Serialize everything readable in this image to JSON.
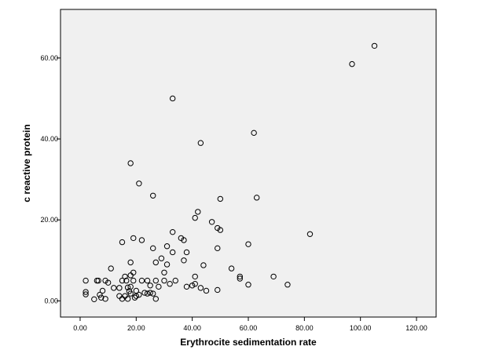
{
  "chart_data": {
    "type": "scatter",
    "title": "",
    "xlabel": "Erythrocite sedimentation rate",
    "ylabel": "c reactive protein",
    "xlim": [
      -7,
      127
    ],
    "ylim": [
      -4,
      72
    ],
    "x_ticks": [
      0,
      20,
      40,
      60,
      80,
      100,
      120
    ],
    "x_tick_labels": [
      "0.00",
      "20.00",
      "40.00",
      "60.00",
      "80.00",
      "100.00",
      "120.00"
    ],
    "y_ticks": [
      0,
      20,
      40,
      60
    ],
    "y_tick_labels": [
      "0.00",
      "20.00",
      "40.00",
      "60.00"
    ],
    "grid": false,
    "legend": "none",
    "colors": {
      "plot_background": "#f0f0f0",
      "marker_stroke": "#000000",
      "axis": "#000000"
    },
    "series": [
      {
        "marker": "open-circle",
        "points": [
          [
            2,
            5
          ],
          [
            2,
            2.2
          ],
          [
            2,
            1.6
          ],
          [
            5,
            0.4
          ],
          [
            6,
            5
          ],
          [
            6.5,
            5
          ],
          [
            7,
            1.5
          ],
          [
            7.5,
            0.8
          ],
          [
            8,
            2.5
          ],
          [
            9,
            5
          ],
          [
            9,
            0.5
          ],
          [
            10,
            4.5
          ],
          [
            11,
            8
          ],
          [
            12,
            3.2
          ],
          [
            14,
            3.2
          ],
          [
            14,
            1.2
          ],
          [
            15,
            14.5
          ],
          [
            15,
            5
          ],
          [
            15,
            0.5
          ],
          [
            16,
            6
          ],
          [
            16,
            1.2
          ],
          [
            16.5,
            5
          ],
          [
            17,
            3.3
          ],
          [
            17,
            0.5
          ],
          [
            17.5,
            2.4
          ],
          [
            18,
            34
          ],
          [
            18,
            9.5
          ],
          [
            18,
            6.3
          ],
          [
            18,
            3.5
          ],
          [
            18,
            1.8
          ],
          [
            19,
            15.5
          ],
          [
            19,
            7
          ],
          [
            19,
            5
          ],
          [
            19.5,
            0.8
          ],
          [
            20,
            2.5
          ],
          [
            20,
            1.2
          ],
          [
            21,
            29
          ],
          [
            21,
            1.5
          ],
          [
            22,
            15
          ],
          [
            22,
            5
          ],
          [
            23,
            2
          ],
          [
            24,
            5
          ],
          [
            24,
            1.8
          ],
          [
            25,
            3.8
          ],
          [
            25,
            2
          ],
          [
            26,
            26
          ],
          [
            26,
            13
          ],
          [
            26,
            1.8
          ],
          [
            27,
            9.5
          ],
          [
            27,
            5
          ],
          [
            27,
            0.5
          ],
          [
            28,
            3.5
          ],
          [
            29,
            10.5
          ],
          [
            30,
            7
          ],
          [
            30,
            5
          ],
          [
            31,
            13.5
          ],
          [
            31,
            9
          ],
          [
            32,
            4.2
          ],
          [
            33,
            50
          ],
          [
            33,
            17
          ],
          [
            33,
            12
          ],
          [
            34,
            5
          ],
          [
            36,
            15.5
          ],
          [
            37,
            15
          ],
          [
            37,
            10
          ],
          [
            38,
            12
          ],
          [
            38,
            3.5
          ],
          [
            40,
            3.8
          ],
          [
            41,
            20.5
          ],
          [
            41,
            6
          ],
          [
            41,
            4.2
          ],
          [
            42,
            22
          ],
          [
            43,
            39
          ],
          [
            43,
            3.2
          ],
          [
            44,
            8.8
          ],
          [
            45,
            2.5
          ],
          [
            47,
            19.5
          ],
          [
            49,
            18
          ],
          [
            49,
            13
          ],
          [
            49,
            2.7
          ],
          [
            50,
            25.2
          ],
          [
            50,
            17.5
          ],
          [
            54,
            8
          ],
          [
            57,
            6
          ],
          [
            57,
            5.5
          ],
          [
            60,
            14
          ],
          [
            60,
            4
          ],
          [
            62,
            41.5
          ],
          [
            63,
            25.5
          ],
          [
            69,
            6
          ],
          [
            74,
            4
          ],
          [
            82,
            16.5
          ],
          [
            97,
            58.5
          ],
          [
            105,
            63
          ]
        ]
      }
    ]
  }
}
